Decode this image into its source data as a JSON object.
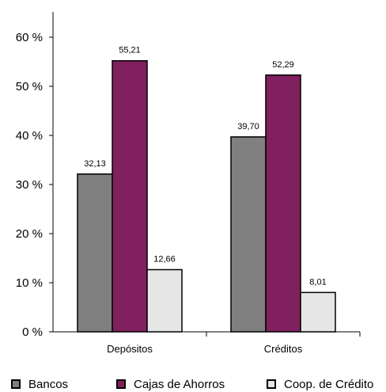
{
  "chart_data": {
    "type": "bar",
    "categories": [
      "Depósitos",
      "Créditos"
    ],
    "series": [
      {
        "name": "Bancos",
        "values": [
          32.13,
          39.7
        ],
        "labels": [
          "32,13",
          "39,70"
        ],
        "color": "#808080"
      },
      {
        "name": "Cajas de Ahorros",
        "values": [
          55.21,
          52.29
        ],
        "labels": [
          "55,21",
          "52,29"
        ],
        "color": "#80205e"
      },
      {
        "name": "Coop. de Crédito",
        "values": [
          12.66,
          8.01
        ],
        "labels": [
          "12,66",
          "8,01"
        ],
        "color": "#e6e6e6"
      }
    ],
    "ylim": [
      0,
      60
    ],
    "yticks": [
      0,
      10,
      20,
      30,
      40,
      50,
      60
    ],
    "ytick_labels": [
      "0 %",
      "10 %",
      "20 %",
      "30 %",
      "40 %",
      "50 %",
      "60 %"
    ],
    "grid": false,
    "legend_position": "bottom",
    "title": "",
    "xlabel": "",
    "ylabel": ""
  }
}
